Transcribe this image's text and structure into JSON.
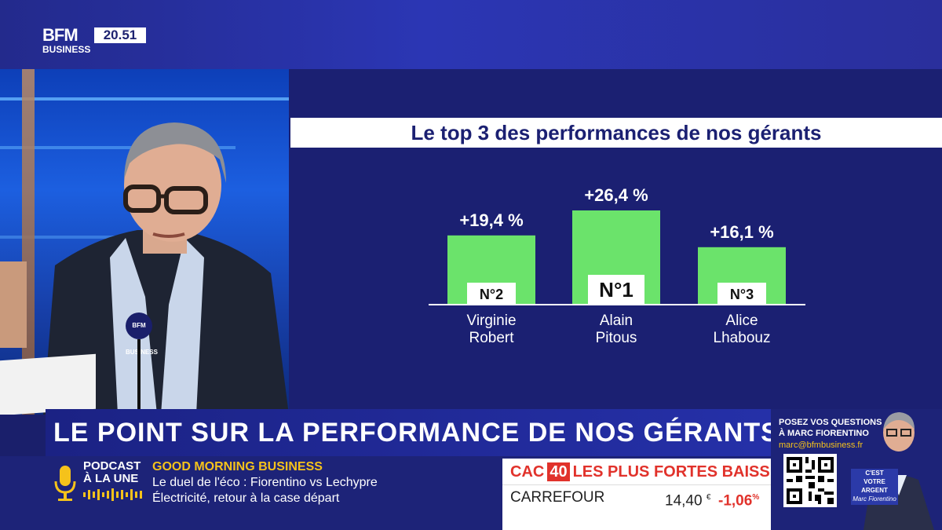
{
  "channel": {
    "logo_line1": "BFM",
    "logo_line2": "BUSINESS",
    "clock": "20.51"
  },
  "mic_flag": "BFM BUSINESS",
  "panel": {
    "title": "Le top 3 des performances de nos gérants"
  },
  "chart_data": {
    "type": "bar",
    "categories": [
      "Virginie Robert",
      "Alain Pitous",
      "Alice Lhabouz"
    ],
    "values": [
      19.4,
      26.4,
      16.1
    ],
    "value_labels": [
      "+19,4 %",
      "+26,4 %",
      "+16,1 %"
    ],
    "ranks": [
      "N°2",
      "N°1",
      "N°3"
    ],
    "name_lines": [
      [
        "Virginie",
        "Robert"
      ],
      [
        "Alain",
        "Pitous"
      ],
      [
        "Alice",
        "Lhabouz"
      ]
    ],
    "bar_color": "#6be36b",
    "title": "Le top 3 des performances de nos gérants"
  },
  "headline": "LE POINT SUR LA PERFORMANCE DE NOS GÉRANTS",
  "podcast": {
    "label_line1": "PODCAST",
    "label_line2": "À LA UNE",
    "show": "GOOD MORNING BUSINESS",
    "line1": "Le duel de l'éco : Fiorentino vs Lechypre",
    "line2": "Électricité, retour à la case départ"
  },
  "market": {
    "index_prefix": "CAC",
    "index_num": "40",
    "heading": "LES PLUS FORTES BAISSES",
    "rows": [
      {
        "name": "CARREFOUR",
        "price": "14,40",
        "currency": "€",
        "change": "-1,06",
        "unit": "%"
      }
    ]
  },
  "promo": {
    "line1": "POSEZ VOS QUESTIONS",
    "line2": "À MARC FIORENTINO",
    "email": "marc@bfmbusiness.fr",
    "badge_line1": "C'EST",
    "badge_line2": "VOTRE",
    "badge_line3": "ARGENT",
    "badge_sign": "Marc Fiorentino"
  },
  "colors": {
    "navy": "#1b2072",
    "accent_green": "#6be36b",
    "market_red": "#e1322b",
    "gold": "#f5c21b"
  }
}
